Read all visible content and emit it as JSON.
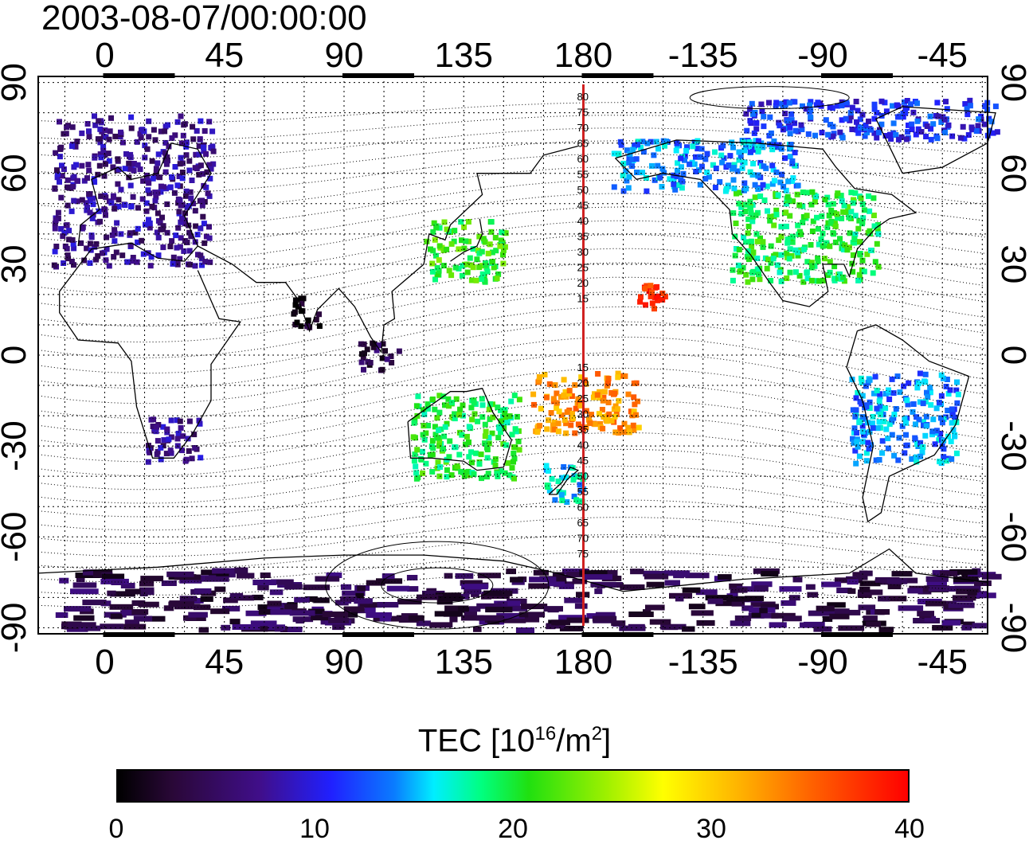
{
  "title": "2003-08-07/00:00:00",
  "map": {
    "lon_tick_labels": [
      "0",
      "45",
      "90",
      "135",
      "180",
      "-135",
      "-90",
      "-45"
    ],
    "lon_tick_values": [
      0,
      45,
      90,
      135,
      180,
      225,
      270,
      315
    ],
    "lat_tick_labels": [
      "90",
      "60",
      "30",
      "0",
      "-30",
      "-60",
      "-90"
    ],
    "lat_tick_values": [
      90,
      60,
      30,
      0,
      -30,
      -60,
      -90
    ],
    "lon_range": [
      -25,
      332
    ],
    "lat_range": [
      -92,
      92
    ],
    "marker_meridian": 180,
    "marker_color": "#d02020",
    "meridian_labels_north": [
      "80",
      "75",
      "70",
      "65",
      "60",
      "55",
      "50",
      "45",
      "40",
      "35",
      "30",
      "25",
      "20",
      "15"
    ],
    "meridian_labels_south": [
      "15",
      "20",
      "25",
      "30",
      "35",
      "40",
      "45",
      "50",
      "55",
      "60",
      "65",
      "70",
      "75"
    ],
    "tec_regions": [
      {
        "name": "europe",
        "lon": [
          -20,
          40
        ],
        "lat": [
          30,
          80
        ],
        "tec": 7
      },
      {
        "name": "north-america",
        "lon": [
          235,
          290
        ],
        "lat": [
          25,
          55
        ],
        "tec": 20
      },
      {
        "name": "alaska-canada",
        "lon": [
          190,
          260
        ],
        "lat": [
          55,
          72
        ],
        "tec": 14
      },
      {
        "name": "greenland-arctic",
        "lon": [
          240,
          335
        ],
        "lat": [
          72,
          85
        ],
        "tec": 11
      },
      {
        "name": "japan",
        "lon": [
          120,
          150
        ],
        "lat": [
          25,
          45
        ],
        "tec": 21
      },
      {
        "name": "hawaii",
        "lon": [
          200,
          210
        ],
        "lat": [
          16,
          24
        ],
        "tec": 38
      },
      {
        "name": "pacific-tropics",
        "lon": [
          160,
          200
        ],
        "lat": [
          -25,
          -5
        ],
        "tec": 33
      },
      {
        "name": "australia",
        "lon": [
          115,
          155
        ],
        "lat": [
          -40,
          -12
        ],
        "tec": 20
      },
      {
        "name": "new-zealand",
        "lon": [
          165,
          180
        ],
        "lat": [
          -48,
          -35
        ],
        "tec": 16
      },
      {
        "name": "southern-africa",
        "lon": [
          15,
          35
        ],
        "lat": [
          -35,
          -20
        ],
        "tec": 7
      },
      {
        "name": "south-america",
        "lon": [
          280,
          320
        ],
        "lat": [
          -35,
          -5
        ],
        "tec": 14
      },
      {
        "name": "india",
        "lon": [
          70,
          80
        ],
        "lat": [
          10,
          20
        ],
        "tec": 1
      },
      {
        "name": "indonesia",
        "lon": [
          95,
          110
        ],
        "lat": [
          -5,
          5
        ],
        "tec": 4
      },
      {
        "name": "antarctica",
        "lon": [
          -20,
          330
        ],
        "lat": [
          -90,
          -70
        ],
        "tec": 4
      }
    ]
  },
  "colorbar": {
    "title": "TEC  [10",
    "title_sup1": "16",
    "title_mid": "/m",
    "title_sup2": "2",
    "title_end": "]",
    "tick_labels": [
      "0",
      "10",
      "20",
      "30",
      "40"
    ],
    "tick_values": [
      0,
      10,
      20,
      30,
      40
    ],
    "range": [
      0,
      40
    ]
  }
}
